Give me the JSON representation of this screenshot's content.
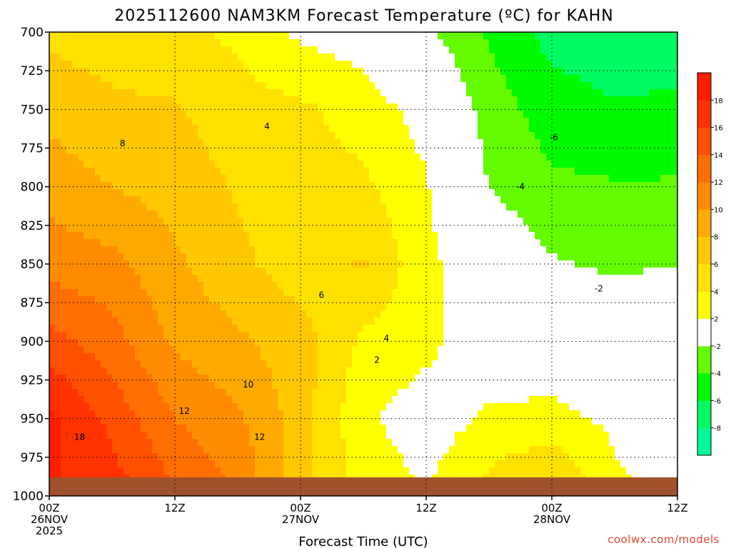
{
  "chart_data": {
    "type": "heatmap",
    "title": "2025112600 NAM3KM Forecast Temperature (ºC) for KAHN",
    "xlabel": "Forecast Time (UTC)",
    "ylabel": "",
    "x_ticks": [
      {
        "hour": 0,
        "line1": "00Z",
        "line2": "26NOV",
        "line3": "2025"
      },
      {
        "hour": 12,
        "line1": "12Z",
        "line2": "",
        "line3": ""
      },
      {
        "hour": 24,
        "line1": "00Z",
        "line2": "27NOV",
        "line3": ""
      },
      {
        "hour": 36,
        "line1": "12Z",
        "line2": "",
        "line3": ""
      },
      {
        "hour": 48,
        "line1": "00Z",
        "line2": "28NOV",
        "line3": ""
      },
      {
        "hour": 60,
        "line1": "12Z",
        "line2": "",
        "line3": ""
      }
    ],
    "xlim": [
      0,
      60
    ],
    "y_ticks": [
      700,
      725,
      750,
      775,
      800,
      825,
      850,
      875,
      900,
      925,
      950,
      975,
      1000
    ],
    "ylim": [
      1000,
      700
    ],
    "ground_level_hpa": 988,
    "colorbar": {
      "levels": [
        -10,
        -8,
        -6,
        -4,
        -2,
        2,
        4,
        6,
        8,
        10,
        12,
        14,
        16,
        18,
        20
      ],
      "labels": [
        "-8",
        "-6",
        "-4",
        "-2",
        "2",
        "4",
        "6",
        "8",
        "10",
        "12",
        "14",
        "16",
        "18"
      ],
      "colors": [
        "#00fa96",
        "#00fa64",
        "#00fa00",
        "#64fa00",
        "#ffffff",
        "#ffff00",
        "#ffe100",
        "#ffc800",
        "#ffaa00",
        "#ff8c00",
        "#ff6e00",
        "#ff5000",
        "#ff3200",
        "#ff1e00"
      ],
      "ground_color": "#a0522d",
      "zero_line_color": "#c8106e"
    },
    "contour_labels": [
      {
        "text": "8",
        "hour": 7.0,
        "p": 772
      },
      {
        "text": "4",
        "hour": 20.8,
        "p": 761
      },
      {
        "text": "6",
        "hour": 26.0,
        "p": 870
      },
      {
        "text": "4",
        "hour": 32.2,
        "p": 898
      },
      {
        "text": "2",
        "hour": 31.3,
        "p": 912
      },
      {
        "text": "10",
        "hour": 19.0,
        "p": 928
      },
      {
        "text": "12",
        "hour": 12.9,
        "p": 945
      },
      {
        "text": "12",
        "hour": 20.1,
        "p": 962
      },
      {
        "text": "18",
        "hour": 2.9,
        "p": 962
      },
      {
        "text": "-6",
        "hour": 48.2,
        "p": 768
      },
      {
        "text": "-4",
        "hour": 45.0,
        "p": 800
      },
      {
        "text": "-2",
        "hour": 52.5,
        "p": 866
      }
    ],
    "temperature_field": {
      "x_hours": [
        0,
        6,
        12,
        18,
        24,
        30,
        36,
        42,
        48,
        54,
        60
      ],
      "p_levels": [
        700,
        750,
        800,
        850,
        900,
        950,
        990
      ],
      "values_c": [
        [
          5.5,
          5.0,
          4.5,
          3.6,
          1.6,
          1.0,
          -1.6,
          -4.2,
          -6.8,
          -7.2,
          -7.0
        ],
        [
          7.4,
          6.4,
          6.2,
          4.8,
          4.4,
          3.0,
          1.2,
          -3.0,
          -5.0,
          -5.8,
          -5.6
        ],
        [
          9.2,
          8.0,
          7.2,
          5.8,
          5.2,
          4.4,
          2.2,
          -2.0,
          -3.6,
          -3.8,
          -3.8
        ],
        [
          11.2,
          10.6,
          8.4,
          6.4,
          5.0,
          6.2,
          2.6,
          0.0,
          -1.8,
          -2.4,
          -2.0
        ],
        [
          14.8,
          12.8,
          9.6,
          8.4,
          6.8,
          3.6,
          2.6,
          0.4,
          0.4,
          0.2,
          0.4
        ],
        [
          18.6,
          15.4,
          12.0,
          10.4,
          7.0,
          2.4,
          0.8,
          2.4,
          2.6,
          1.6,
          0.4
        ],
        [
          18.2,
          16.8,
          13.8,
          11.6,
          6.6,
          3.2,
          1.8,
          4.4,
          6.2,
          2.2,
          1.6
        ]
      ]
    }
  },
  "credit": "coolwx.com/models"
}
